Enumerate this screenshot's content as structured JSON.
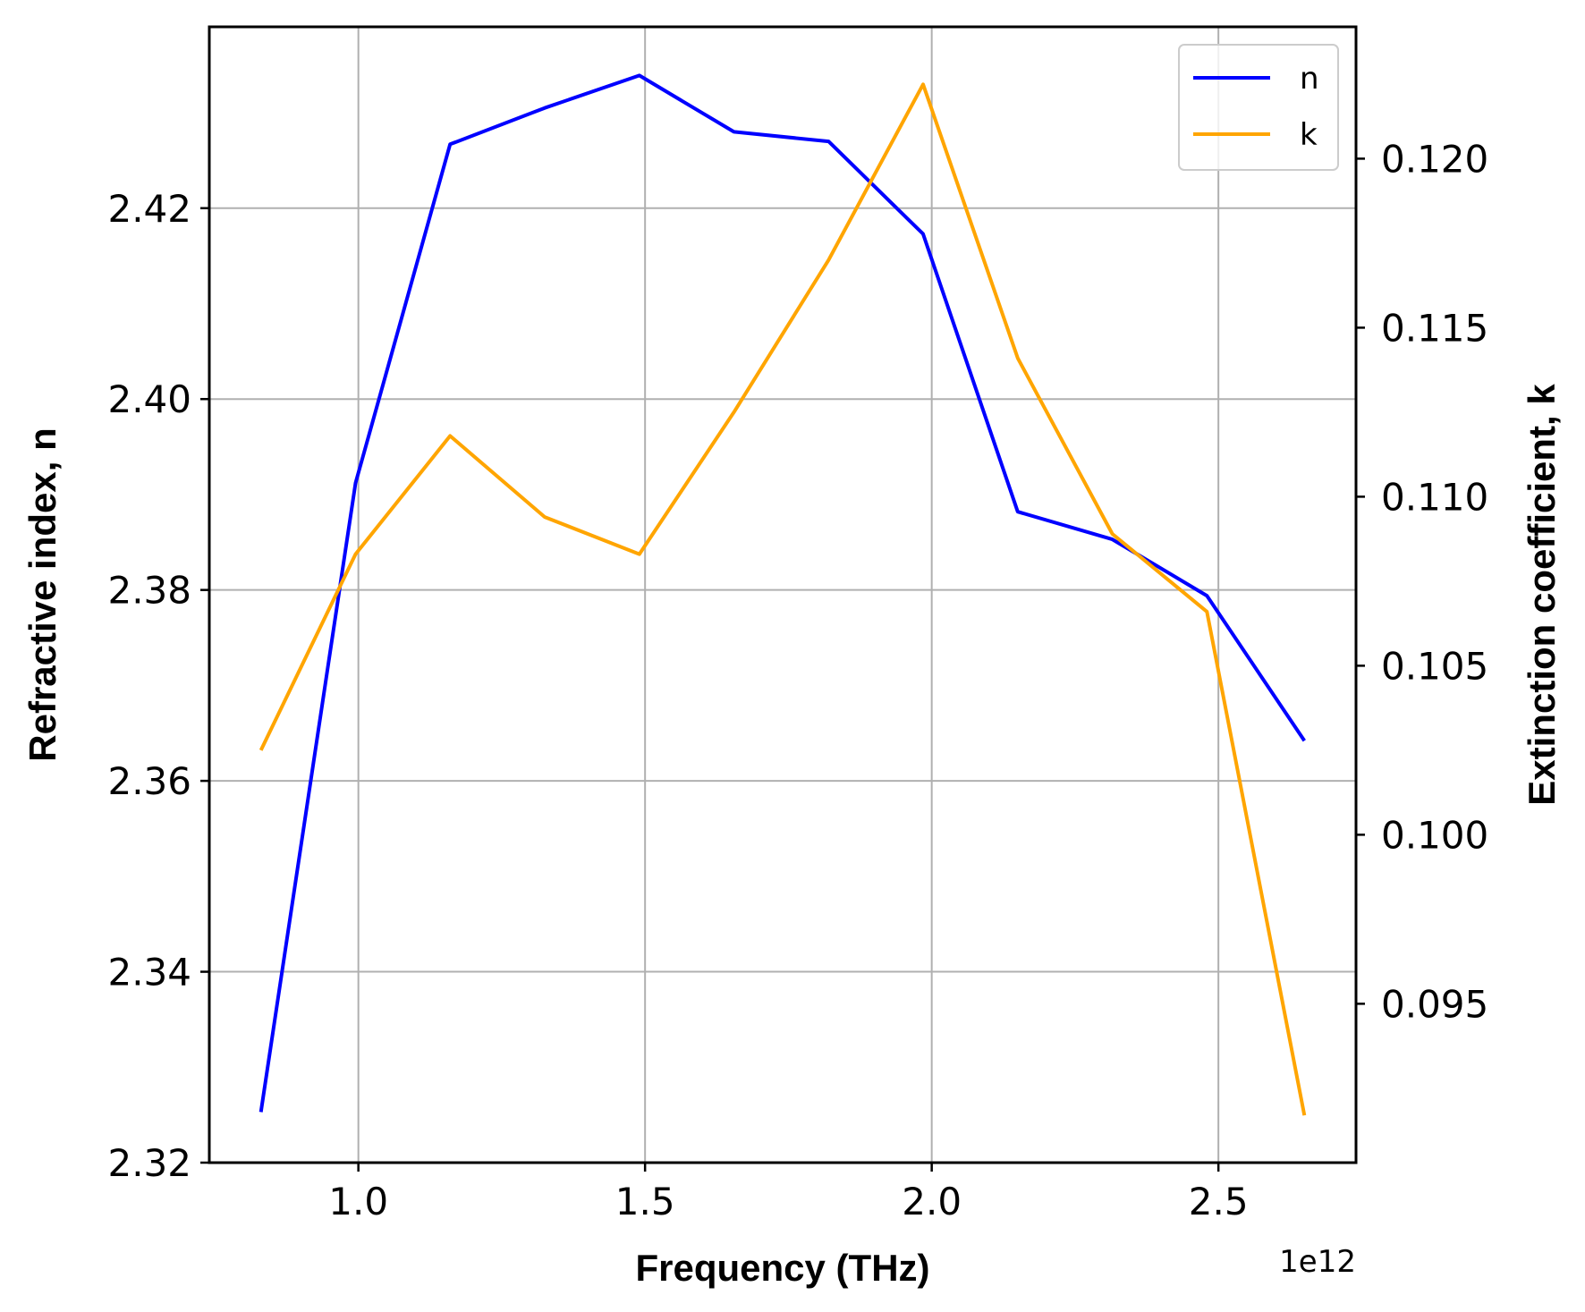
{
  "chart_data": {
    "type": "line",
    "xlabel": "Frequency (THz)",
    "x_offset_label": "1e12",
    "ylabel_left": "Refractive index, n",
    "ylabel_right": "Extinction coefficient, k",
    "xlim": [
      0.74,
      2.74
    ],
    "ylim_left": [
      2.32,
      2.439
    ],
    "ylim_right": [
      0.0903,
      0.1239
    ],
    "xticks": [
      1.0,
      1.5,
      2.0,
      2.5
    ],
    "xtick_labels": [
      "1.0",
      "1.5",
      "2.0",
      "2.5"
    ],
    "yticks_left": [
      2.32,
      2.34,
      2.36,
      2.38,
      2.4,
      2.42
    ],
    "ytick_labels_left": [
      "2.32",
      "2.34",
      "2.36",
      "2.38",
      "2.40",
      "2.42"
    ],
    "yticks_right": [
      0.095,
      0.1,
      0.105,
      0.11,
      0.115,
      0.12
    ],
    "ytick_labels_right": [
      "0.095",
      "0.100",
      "0.105",
      "0.110",
      "0.115",
      "0.120"
    ],
    "grid": true,
    "legend_position": "top-right",
    "x": [
      0.83,
      0.995,
      1.16,
      1.325,
      1.49,
      1.655,
      1.82,
      1.985,
      2.15,
      2.315,
      2.48,
      2.65
    ],
    "series": [
      {
        "name": "n",
        "axis": "left",
        "color": "#0000ff",
        "values": [
          2.3253,
          2.3912,
          2.4267,
          2.4305,
          2.4339,
          2.428,
          2.427,
          2.4173,
          2.3882,
          2.3853,
          2.3794,
          2.3642
        ]
      },
      {
        "name": "k",
        "axis": "right",
        "color": "#ffa500",
        "values": [
          0.1025,
          0.1083,
          0.1118,
          0.1094,
          0.1083,
          0.1125,
          0.117,
          0.1222,
          0.1141,
          0.1089,
          0.1066,
          0.0917
        ]
      }
    ]
  }
}
